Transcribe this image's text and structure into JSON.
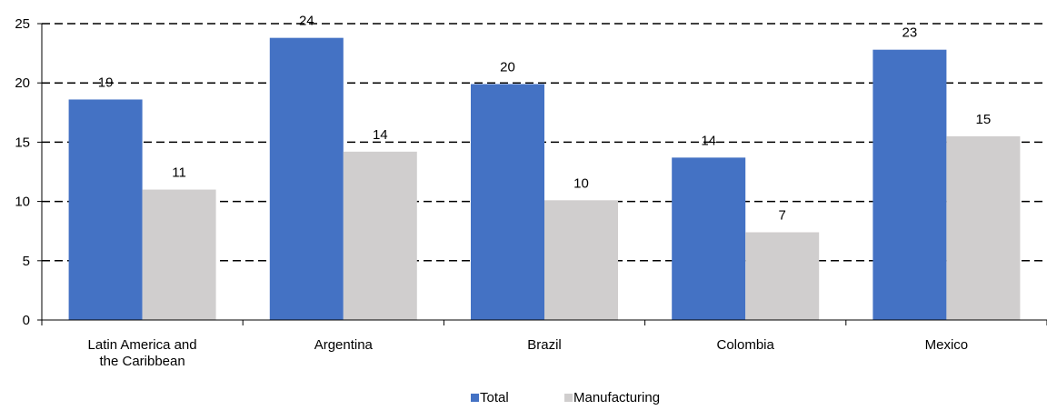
{
  "chart_data": {
    "type": "bar",
    "categories": [
      [
        "Latin America and",
        "the Caribbean"
      ],
      [
        "Argentina"
      ],
      [
        "Brazil"
      ],
      [
        "Colombia"
      ],
      [
        "Mexico"
      ]
    ],
    "series": [
      {
        "name": "Total",
        "color": "#4472c4",
        "values": [
          18.6,
          23.8,
          19.9,
          13.7,
          22.8
        ],
        "labels": [
          "19",
          "24",
          "20",
          "14",
          "23"
        ]
      },
      {
        "name": "Manufacturing",
        "color": "#d0cece",
        "values": [
          11.0,
          14.2,
          10.1,
          7.4,
          15.5
        ],
        "labels": [
          "11",
          "14",
          "10",
          "7",
          "15"
        ]
      }
    ],
    "ylim": [
      0,
      25
    ],
    "yticks": [
      "0",
      "5",
      "10",
      "15",
      "20",
      "25"
    ],
    "grid": true,
    "gridline_style": "dashed",
    "legend_placement": "bottom-center"
  }
}
